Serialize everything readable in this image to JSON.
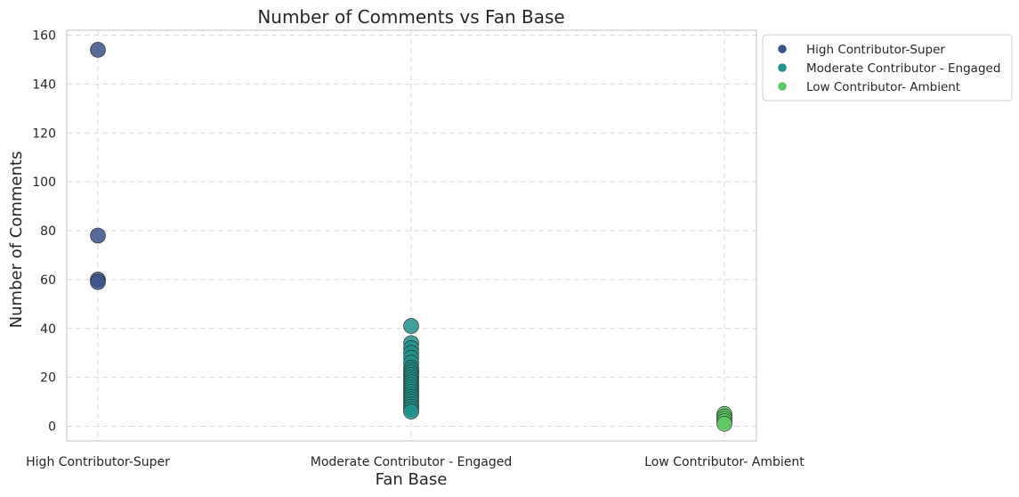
{
  "chart_data": {
    "type": "scatter",
    "title": "Number of Comments vs Fan Base",
    "xlabel": "Fan Base",
    "ylabel": "Number of Comments",
    "categories": [
      "High Contributor-Super",
      " Moderate Contributor - Engaged",
      "Low Contributor- Ambient"
    ],
    "ylim": [
      -6,
      162
    ],
    "yticks": [
      0,
      20,
      40,
      60,
      80,
      100,
      120,
      140,
      160
    ],
    "grid": true,
    "legend_position": "outside-top-right",
    "series": [
      {
        "name": "High Contributor-Super",
        "color": "#3b528b",
        "points": [
          {
            "x": "High Contributor-Super",
            "y": 154
          },
          {
            "x": "High Contributor-Super",
            "y": 78
          },
          {
            "x": "High Contributor-Super",
            "y": 60
          },
          {
            "x": "High Contributor-Super",
            "y": 59
          }
        ]
      },
      {
        "name": " Moderate Contributor - Engaged",
        "color": "#21918c",
        "points": [
          {
            "x": " Moderate Contributor - Engaged",
            "y": 41
          },
          {
            "x": " Moderate Contributor - Engaged",
            "y": 34
          },
          {
            "x": " Moderate Contributor - Engaged",
            "y": 32
          },
          {
            "x": " Moderate Contributor - Engaged",
            "y": 30
          },
          {
            "x": " Moderate Contributor - Engaged",
            "y": 28
          },
          {
            "x": " Moderate Contributor - Engaged",
            "y": 26
          },
          {
            "x": " Moderate Contributor - Engaged",
            "y": 24
          },
          {
            "x": " Moderate Contributor - Engaged",
            "y": 23
          },
          {
            "x": " Moderate Contributor - Engaged",
            "y": 22
          },
          {
            "x": " Moderate Contributor - Engaged",
            "y": 21
          },
          {
            "x": " Moderate Contributor - Engaged",
            "y": 20
          },
          {
            "x": " Moderate Contributor - Engaged",
            "y": 19
          },
          {
            "x": " Moderate Contributor - Engaged",
            "y": 18
          },
          {
            "x": " Moderate Contributor - Engaged",
            "y": 17
          },
          {
            "x": " Moderate Contributor - Engaged",
            "y": 16
          },
          {
            "x": " Moderate Contributor - Engaged",
            "y": 15
          },
          {
            "x": " Moderate Contributor - Engaged",
            "y": 14
          },
          {
            "x": " Moderate Contributor - Engaged",
            "y": 13
          },
          {
            "x": " Moderate Contributor - Engaged",
            "y": 12
          },
          {
            "x": " Moderate Contributor - Engaged",
            "y": 11
          },
          {
            "x": " Moderate Contributor - Engaged",
            "y": 10
          },
          {
            "x": " Moderate Contributor - Engaged",
            "y": 9
          },
          {
            "x": " Moderate Contributor - Engaged",
            "y": 8
          },
          {
            "x": " Moderate Contributor - Engaged",
            "y": 7
          },
          {
            "x": " Moderate Contributor - Engaged",
            "y": 6
          }
        ]
      },
      {
        "name": "Low Contributor- Ambient",
        "color": "#5ec962",
        "points": [
          {
            "x": "Low Contributor- Ambient",
            "y": 5
          },
          {
            "x": "Low Contributor- Ambient",
            "y": 4
          },
          {
            "x": "Low Contributor- Ambient",
            "y": 3
          },
          {
            "x": "Low Contributor- Ambient",
            "y": 2
          },
          {
            "x": "Low Contributor- Ambient",
            "y": 1
          }
        ]
      }
    ]
  }
}
